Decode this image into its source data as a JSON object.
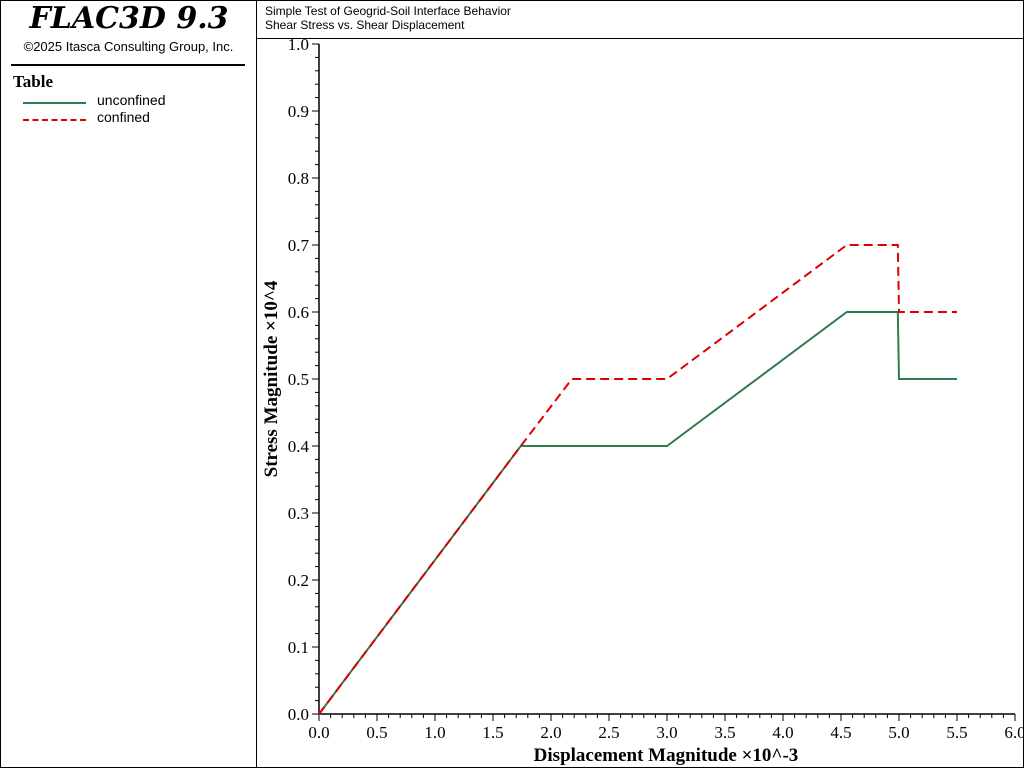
{
  "app": {
    "title": "FLAC3D 9.3",
    "copyright": "©2025 Itasca Consulting Group, Inc."
  },
  "legend": {
    "title": "Table",
    "items": [
      {
        "label": "unconfined",
        "color": "#2e7d4f",
        "style": "solid"
      },
      {
        "label": "confined",
        "color": "#dd0000",
        "style": "dashed"
      }
    ]
  },
  "header": {
    "line1": "Simple Test of Geogrid-Soil Interface Behavior",
    "line2": "Shear Stress vs. Shear Displacement"
  },
  "chart_data": {
    "type": "line",
    "xlabel": "Displacement Magnitude ×10^-3",
    "ylabel": "Stress Magnitude ×10^4",
    "xlim": [
      0,
      6
    ],
    "ylim": [
      0,
      1
    ],
    "x_ticks": [
      "0.0",
      "0.5",
      "1.0",
      "1.5",
      "2.0",
      "2.5",
      "3.0",
      "3.5",
      "4.0",
      "4.5",
      "5.0",
      "5.5",
      "6.0"
    ],
    "y_ticks": [
      "0.0",
      "0.1",
      "0.2",
      "0.3",
      "0.4",
      "0.5",
      "0.6",
      "0.7",
      "0.8",
      "0.9",
      "1.0"
    ],
    "grid": false,
    "legend_position": "left-panel",
    "series": [
      {
        "name": "unconfined",
        "color": "#2e7d4f",
        "style": "solid",
        "points": [
          [
            0,
            0
          ],
          [
            1.74,
            0.4
          ],
          [
            3.0,
            0.4
          ],
          [
            4.55,
            0.6
          ],
          [
            4.99,
            0.6
          ],
          [
            5.0,
            0.5
          ],
          [
            5.5,
            0.5
          ]
        ]
      },
      {
        "name": "confined",
        "color": "#dd0000",
        "style": "dashed",
        "points": [
          [
            0,
            0
          ],
          [
            1.74,
            0.4
          ],
          [
            2.18,
            0.5
          ],
          [
            3.0,
            0.5
          ],
          [
            4.55,
            0.7
          ],
          [
            4.99,
            0.7
          ],
          [
            5.0,
            0.6
          ],
          [
            5.5,
            0.6
          ]
        ]
      }
    ]
  }
}
